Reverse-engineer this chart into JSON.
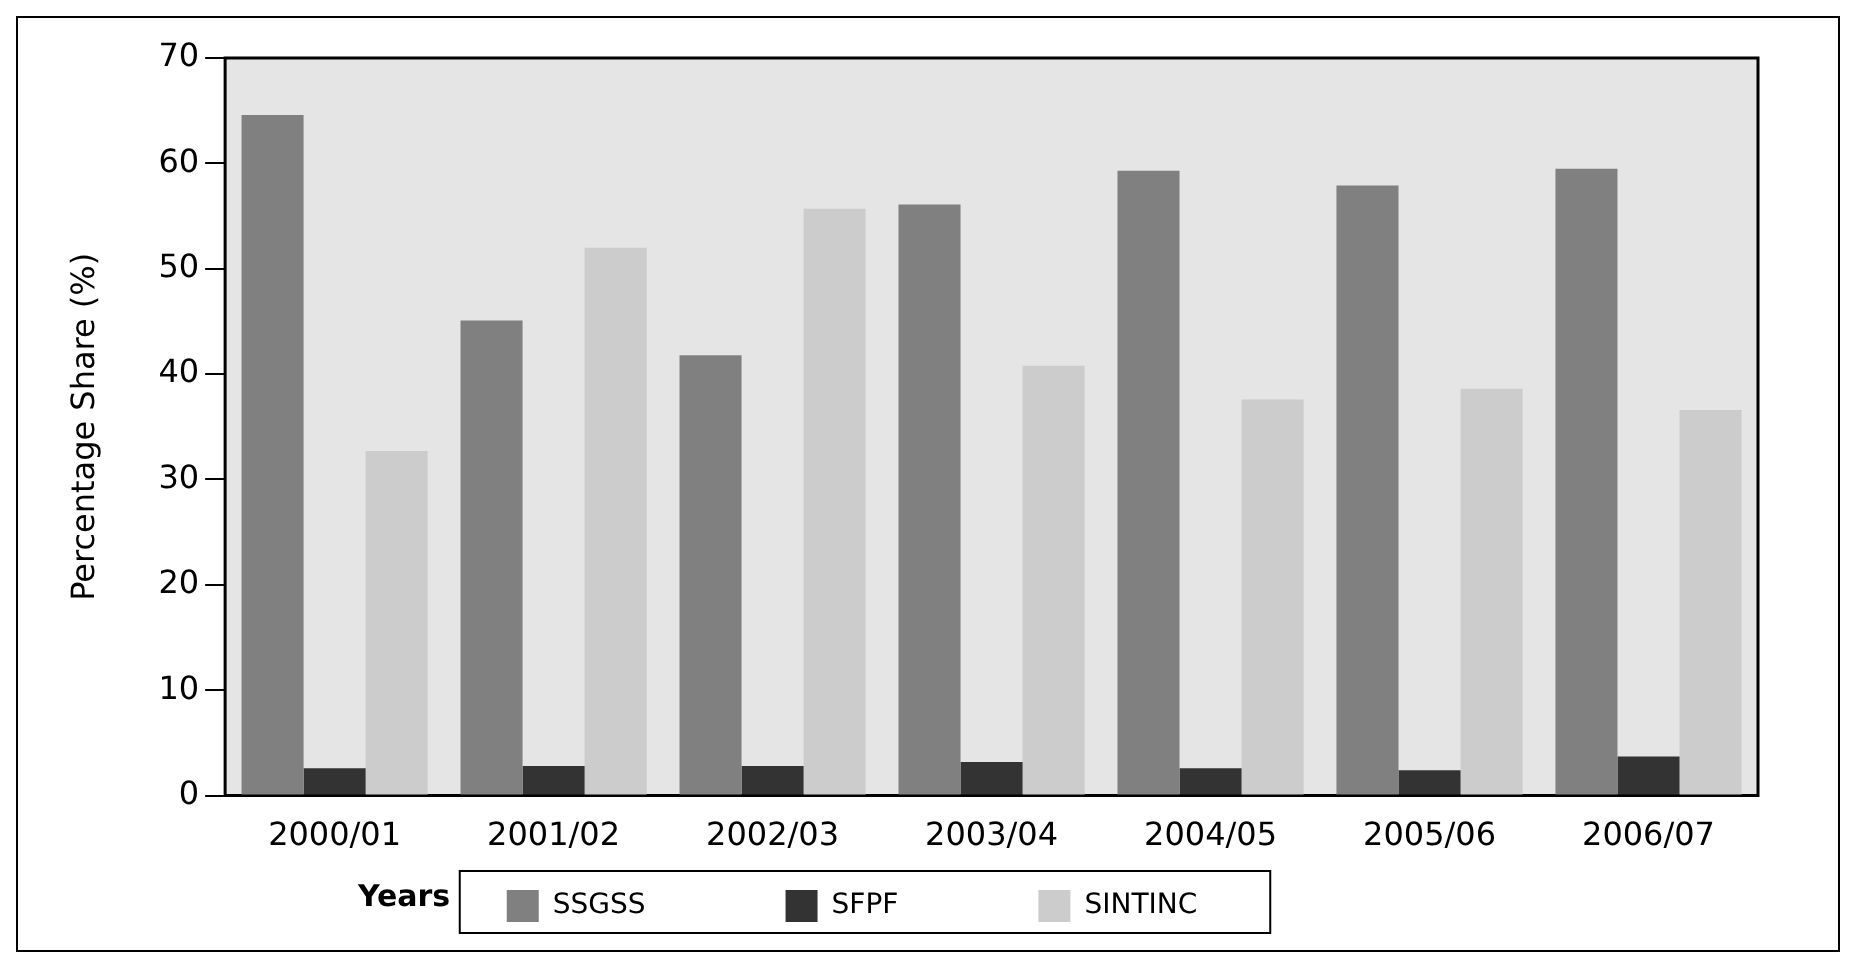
{
  "chart_data": {
    "type": "bar",
    "xlabel": "Years",
    "ylabel": "Percentage Share (%)",
    "categories": [
      "2000/01",
      "2001/02",
      "2002/03",
      "2003/04",
      "2004/05",
      "2005/06",
      "2006/07"
    ],
    "series": [
      {
        "name": "SSGSS",
        "color": "#808080",
        "values": [
          64.6,
          45.1,
          41.8,
          56.1,
          59.3,
          57.9,
          59.5
        ]
      },
      {
        "name": "SFPF",
        "color": "#333333",
        "values": [
          2.6,
          2.8,
          2.8,
          3.2,
          2.6,
          2.4,
          3.7
        ]
      },
      {
        "name": "SINTINC",
        "color": "#cccccc",
        "values": [
          32.7,
          52.0,
          55.7,
          40.8,
          37.6,
          38.6,
          36.6
        ]
      }
    ],
    "ylim": [
      0,
      70
    ],
    "yticks": [
      0,
      10,
      20,
      30,
      40,
      50,
      60,
      70
    ],
    "grid": false,
    "legend": "bottom"
  }
}
